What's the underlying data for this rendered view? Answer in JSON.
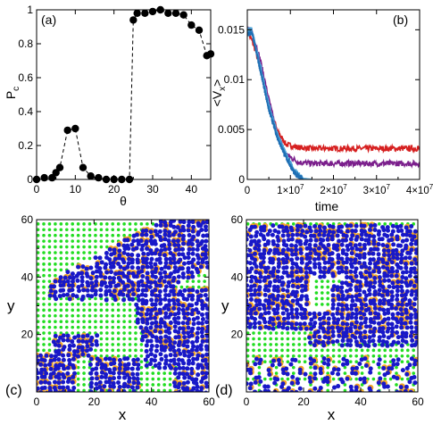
{
  "chart_data": [
    {
      "panel": "(a)",
      "type": "scatter",
      "xlabel": "θ",
      "ylabel_main": "P",
      "ylabel_sub": "c",
      "xlim": [
        0,
        45
      ],
      "ylim": [
        0,
        1
      ],
      "xticks": [
        "0",
        "10",
        "20",
        "30",
        "40"
      ],
      "yticks": [
        "0",
        "0.2",
        "0.4",
        "0.6",
        "0.8",
        "1"
      ],
      "marker_color": "#000000",
      "line_style": "dashed",
      "x": [
        0,
        2,
        4,
        5,
        6,
        8,
        10,
        12,
        14,
        16,
        18,
        20,
        22,
        24,
        25,
        26,
        28,
        30,
        32,
        34,
        36,
        38,
        40,
        42,
        44,
        45
      ],
      "y": [
        0.0,
        0.01,
        0.01,
        0.04,
        0.07,
        0.29,
        0.3,
        0.07,
        0.02,
        0.01,
        0.0,
        0.0,
        0.0,
        0.0,
        0.94,
        0.98,
        0.98,
        0.99,
        1.0,
        0.98,
        0.98,
        0.97,
        0.91,
        0.88,
        0.73,
        0.74
      ]
    },
    {
      "panel": "(b)",
      "type": "line",
      "xlabel": "time",
      "ylabel_main": "<V",
      "ylabel_sub": "x",
      "ylabel_end": ">",
      "xlim": [
        0,
        40000000
      ],
      "ylim": [
        0,
        0.017
      ],
      "xtick_mantissa": [
        "0",
        "1×10",
        "2×10",
        "3×10",
        "4×10"
      ],
      "xtick_exp": "7",
      "yticks": [
        "0",
        "0.005",
        "0.01",
        "0.015"
      ],
      "series": [
        {
          "color": "#1f6fb4",
          "x": [
            0,
            1000000,
            3000000,
            5000000,
            7000000,
            9000000,
            11000000,
            13000000
          ],
          "y": [
            0.0145,
            0.0148,
            0.011,
            0.007,
            0.0042,
            0.0022,
            0.0006,
            0.0
          ]
        },
        {
          "color": "#4aa3d8",
          "x": [
            0,
            1000000,
            3000000,
            5000000,
            7000000,
            9000000,
            11000000,
            13000000,
            15000000
          ],
          "y": [
            0.015,
            0.015,
            0.0115,
            0.0075,
            0.0045,
            0.0025,
            0.0008,
            0.0001,
            0.0
          ]
        },
        {
          "color": "#7b1f8c",
          "x": [
            0,
            1000000,
            3000000,
            5000000,
            7000000,
            9000000,
            12000000,
            15000000,
            20000000,
            30000000,
            40000000
          ],
          "y": [
            0.0148,
            0.015,
            0.012,
            0.008,
            0.0045,
            0.0025,
            0.0017,
            0.0016,
            0.0016,
            0.0016,
            0.0016
          ]
        },
        {
          "color": "#d62020",
          "x": [
            0,
            1000000,
            3000000,
            5000000,
            7000000,
            9000000,
            12000000,
            15000000,
            20000000,
            30000000,
            40000000
          ],
          "y": [
            0.0148,
            0.014,
            0.0115,
            0.0075,
            0.0048,
            0.0035,
            0.0032,
            0.0031,
            0.0031,
            0.0031,
            0.0031
          ]
        }
      ]
    },
    {
      "panel": "(c)",
      "type": "scatter",
      "xlabel": "x",
      "ylabel": "y",
      "xlim": [
        0,
        60
      ],
      "ylim": [
        0,
        60
      ],
      "xticks": [
        "0",
        "20",
        "40",
        "60"
      ],
      "yticks": [
        "20",
        "40",
        "60"
      ],
      "colors": {
        "substrate": "#22dd22",
        "particle": "#1818c8",
        "halo": "#f5a623"
      }
    },
    {
      "panel": "(d)",
      "type": "scatter",
      "xlabel": "x",
      "ylabel": "y",
      "xlim": [
        0,
        60
      ],
      "ylim": [
        0,
        60
      ],
      "xticks": [
        "0",
        "20",
        "40",
        "60"
      ],
      "yticks": [
        "20",
        "40",
        "60"
      ],
      "colors": {
        "substrate": "#22dd22",
        "particle": "#1818c8",
        "halo": "#f5a623"
      }
    }
  ]
}
